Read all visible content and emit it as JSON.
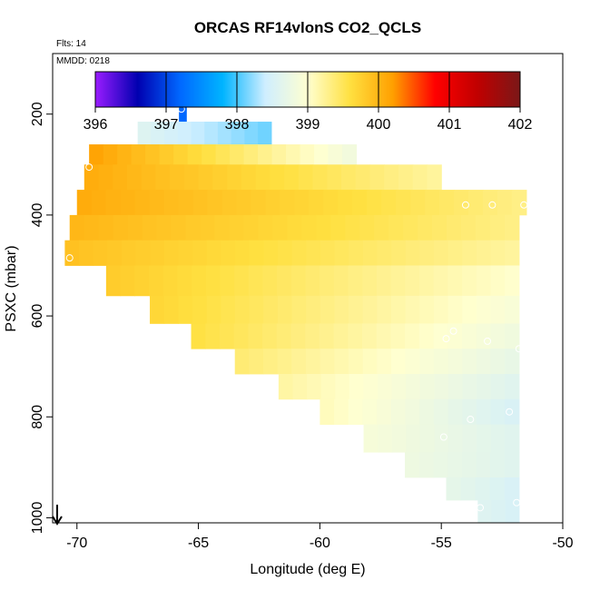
{
  "chart_data": {
    "type": "heatmap",
    "title": "ORCAS RF14vlonS CO2_QCLS",
    "annotations": {
      "flights": "Flts: 14",
      "date": "MMDD: 0218"
    },
    "xlabel": "Longitude (deg E)",
    "ylabel": "PSXC (mbar)",
    "xlim": [
      -71,
      -50
    ],
    "ylim": [
      1010,
      80
    ],
    "x_ticks": [
      -70,
      -65,
      -60,
      -55,
      -50
    ],
    "x_tick_labels": [
      "-70",
      "-65",
      "-60",
      "-55",
      "-50"
    ],
    "y_ticks": [
      200,
      400,
      600,
      800,
      1000
    ],
    "y_tick_labels": [
      "200",
      "400",
      "600",
      "800",
      "1000"
    ],
    "colorbar": {
      "min": 396,
      "max": 402,
      "ticks": [
        396,
        397,
        398,
        399,
        400,
        401,
        402
      ],
      "tick_labels": [
        "396",
        "397",
        "398",
        "399",
        "400",
        "401",
        "402"
      ],
      "palette": [
        "#9a1cff",
        "#0000b0",
        "#0068ff",
        "#00b4ff",
        "#cfeeff",
        "#ffffd0",
        "#ffe040",
        "#ffa000",
        "#ff0000",
        "#c00000",
        "#7a1818"
      ]
    },
    "bands": [
      {
        "p": [
          170,
          215
        ],
        "lon": [
          -65.8,
          -65.5
        ],
        "v0": 397.2,
        "v1": 397.2
      },
      {
        "p": [
          215,
          260
        ],
        "lon": [
          -67.5,
          -62.0
        ],
        "v0": 398.6,
        "v1": 398.1
      },
      {
        "p": [
          260,
          300
        ],
        "lon": [
          -69.5,
          -58.5
        ],
        "v0": 400.2,
        "v1": 398.8
      },
      {
        "p": [
          300,
          350
        ],
        "lon": [
          -69.7,
          -55.0
        ],
        "v0": 400.1,
        "v1": 399.2
      },
      {
        "p": [
          350,
          400
        ],
        "lon": [
          -70.0,
          -51.5
        ],
        "v0": 400.1,
        "v1": 399.3
      },
      {
        "p": [
          400,
          450
        ],
        "lon": [
          -70.3,
          -51.8
        ],
        "v0": 400.0,
        "v1": 399.3
      },
      {
        "p": [
          450,
          500
        ],
        "lon": [
          -70.5,
          -51.8
        ],
        "v0": 399.9,
        "v1": 399.2
      },
      {
        "p": [
          500,
          560
        ],
        "lon": [
          -68.8,
          -51.8
        ],
        "v0": 399.8,
        "v1": 399.0
      },
      {
        "p": [
          560,
          615
        ],
        "lon": [
          -67.0,
          -51.8
        ],
        "v0": 399.7,
        "v1": 398.9
      },
      {
        "p": [
          615,
          665
        ],
        "lon": [
          -65.3,
          -51.8
        ],
        "v0": 399.6,
        "v1": 398.8
      },
      {
        "p": [
          665,
          715
        ],
        "lon": [
          -63.5,
          -51.8
        ],
        "v0": 399.4,
        "v1": 398.7
      },
      {
        "p": [
          715,
          765
        ],
        "lon": [
          -61.7,
          -51.8
        ],
        "v0": 399.2,
        "v1": 398.6
      },
      {
        "p": [
          765,
          815
        ],
        "lon": [
          -60.0,
          -51.8
        ],
        "v0": 399.1,
        "v1": 398.5
      },
      {
        "p": [
          815,
          870
        ],
        "lon": [
          -58.2,
          -51.8
        ],
        "v0": 398.9,
        "v1": 398.6
      },
      {
        "p": [
          870,
          920
        ],
        "lon": [
          -56.5,
          -51.8
        ],
        "v0": 398.8,
        "v1": 398.6
      },
      {
        "p": [
          920,
          965
        ],
        "lon": [
          -54.8,
          -51.8
        ],
        "v0": 398.7,
        "v1": 398.5
      },
      {
        "p": [
          965,
          1010
        ],
        "lon": [
          -53.5,
          -51.8
        ],
        "v0": 398.6,
        "v1": 398.5
      }
    ],
    "flight_points": [
      {
        "lon": -65.7,
        "p": 190
      },
      {
        "lon": -69.5,
        "p": 305
      },
      {
        "lon": -70.3,
        "p": 485
      },
      {
        "lon": -54.0,
        "p": 380
      },
      {
        "lon": -52.9,
        "p": 380
      },
      {
        "lon": -51.6,
        "p": 380
      },
      {
        "lon": -54.8,
        "p": 645
      },
      {
        "lon": -54.5,
        "p": 630
      },
      {
        "lon": -53.1,
        "p": 650
      },
      {
        "lon": -51.8,
        "p": 665
      },
      {
        "lon": -53.8,
        "p": 805
      },
      {
        "lon": -52.2,
        "p": 790
      },
      {
        "lon": -54.9,
        "p": 840
      },
      {
        "lon": -51.9,
        "p": 970
      },
      {
        "lon": -53.4,
        "p": 980
      }
    ]
  }
}
